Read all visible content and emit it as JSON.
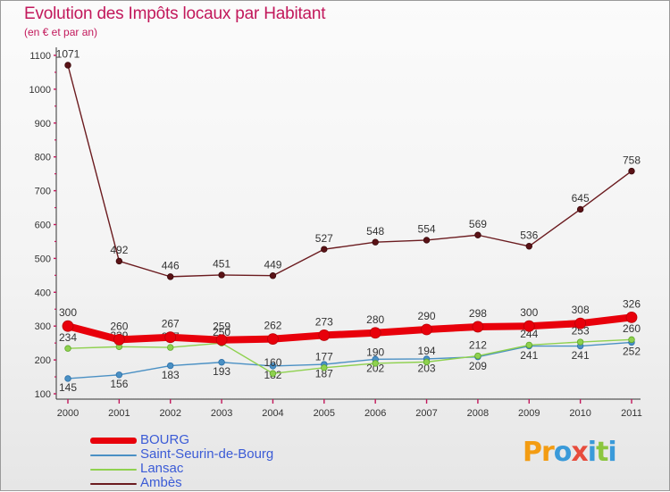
{
  "header": {
    "title": "Evolution des Impôts locaux par Habitant",
    "subtitle": "(en € et par an)"
  },
  "brand": {
    "letters": [
      "P",
      "r",
      "o",
      "x",
      "i",
      "t",
      "i"
    ],
    "colors": [
      "#f39c12",
      "#f39c12",
      "#3a9ad9",
      "#e74c3c",
      "#3a9ad9",
      "#8cc63f",
      "#3a9ad9"
    ]
  },
  "chart_data": {
    "type": "line",
    "title": "Evolution des Impôts locaux par Habitant",
    "subtitle": "(en € et par an)",
    "xlabel": "",
    "ylabel": "",
    "categories": [
      "2000",
      "2001",
      "2002",
      "2003",
      "2004",
      "2005",
      "2006",
      "2007",
      "2008",
      "2009",
      "2010",
      "2011"
    ],
    "ylim": [
      100,
      1100
    ],
    "yticks": [
      100,
      200,
      300,
      400,
      500,
      600,
      700,
      800,
      900,
      1000,
      1100
    ],
    "grid": false,
    "legend_position": "bottom-left",
    "series": [
      {
        "name": "Ambès",
        "color": "#6b1b1f",
        "values": [
          1071,
          492,
          446,
          451,
          449,
          527,
          548,
          554,
          569,
          536,
          645,
          758
        ],
        "labels": [
          "1071",
          "492",
          "446",
          "451",
          "449",
          "527",
          "548",
          "554",
          "569",
          "536",
          "645",
          "758"
        ]
      },
      {
        "name": "Saint-Seurin-de-Bourg",
        "color": "#4a90c4",
        "values": [
          145,
          156,
          183,
          193,
          182,
          187,
          202,
          203,
          209,
          241,
          241,
          252
        ],
        "labels": [
          "145",
          "156",
          "183",
          "193",
          "182",
          "187",
          "202",
          "203",
          "209",
          "241",
          "241",
          "252"
        ]
      },
      {
        "name": "Lansac",
        "color": "#8fd14f",
        "values": [
          234,
          239,
          237,
          250,
          160,
          177,
          190,
          194,
          212,
          244,
          253,
          260
        ],
        "labels": [
          "234",
          "239",
          "237",
          "250",
          "160",
          "177",
          "190",
          "194",
          "212",
          "244",
          "253",
          "260"
        ]
      },
      {
        "name": "BOURG",
        "color": "#e8000b",
        "values": [
          300,
          260,
          267,
          259,
          262,
          273,
          280,
          290,
          298,
          300,
          308,
          326
        ],
        "labels": [
          "300",
          "260",
          "267",
          "259",
          "262",
          "273",
          "280",
          "290",
          "298",
          "300",
          "308",
          "326"
        ]
      }
    ],
    "legend": [
      "BOURG",
      "Saint-Seurin-de-Bourg",
      "Lansac",
      "Ambès"
    ]
  }
}
